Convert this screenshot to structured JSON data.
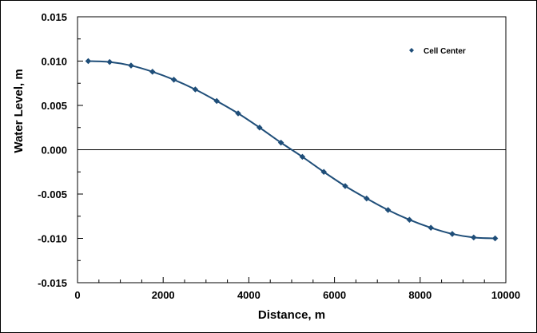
{
  "chart_data": {
    "type": "line",
    "xlabel": "Distance, m",
    "ylabel": "Water Level, m",
    "xlim": [
      0,
      10000
    ],
    "ylim": [
      -0.015,
      0.015
    ],
    "x_ticks": [
      0,
      2000,
      4000,
      6000,
      8000,
      10000
    ],
    "x_tick_labels": [
      "0",
      "2000",
      "4000",
      "6000",
      "8000",
      "10000"
    ],
    "y_ticks": [
      -0.015,
      -0.01,
      -0.005,
      0.0,
      0.005,
      0.01,
      0.015
    ],
    "y_tick_labels": [
      "-0.015",
      "-0.010",
      "-0.005",
      "0.000",
      "0.005",
      "0.010",
      "0.015"
    ],
    "x_minor_step": 500,
    "y_minor_step": 0.0025,
    "zero_line": true,
    "grid": false,
    "legend_position": "top-right",
    "series": [
      {
        "name": "Cell Center",
        "marker": "diamond",
        "line": "smooth",
        "color": "#1f4e79",
        "x": [
          250,
          750,
          1250,
          1750,
          2250,
          2750,
          3250,
          3750,
          4250,
          4750,
          5250,
          5750,
          6250,
          6750,
          7250,
          7750,
          8250,
          8750,
          9250,
          9750
        ],
        "y": [
          0.01,
          0.0099,
          0.0095,
          0.0088,
          0.0079,
          0.0068,
          0.0055,
          0.0041,
          0.0025,
          0.0008,
          -0.0008,
          -0.0025,
          -0.0041,
          -0.0055,
          -0.0068,
          -0.0079,
          -0.0088,
          -0.0095,
          -0.0099,
          -0.01
        ]
      }
    ]
  }
}
